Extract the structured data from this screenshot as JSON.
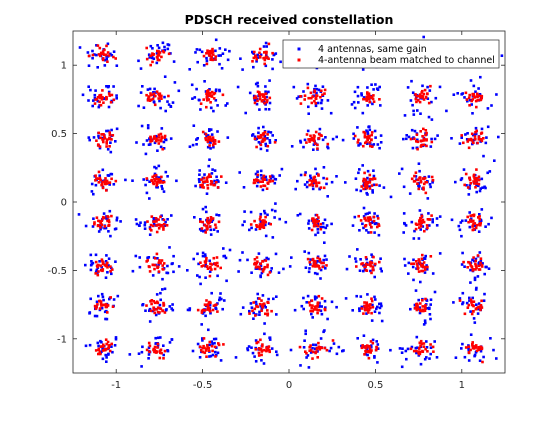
{
  "chart_data": {
    "type": "scatter",
    "title": "PDSCH received constellation",
    "xlabel": "",
    "ylabel": "",
    "xlim": [
      -1.25,
      1.25
    ],
    "ylim": [
      -1.25,
      1.25
    ],
    "x_ticks": [
      -1,
      -0.5,
      0,
      0.5,
      1
    ],
    "y_ticks": [
      -1,
      -0.5,
      0,
      0.5,
      1
    ],
    "x_tick_labels": [
      "-1",
      "-0.5",
      "0",
      "0.5",
      "1"
    ],
    "y_tick_labels": [
      "-1",
      "-0.5",
      "0",
      "0.5",
      "1"
    ],
    "grid": false,
    "legend_position": "top-right",
    "constellation_levels": [
      -1.0738,
      -0.767,
      -0.4602,
      -0.1534,
      0.1534,
      0.4602,
      0.767,
      1.0738
    ],
    "series": [
      {
        "name": "4 antennas, same gain",
        "color": "#0000ff",
        "marker": "point",
        "spread_std": 0.055,
        "points_per_symbol": 24
      },
      {
        "name": "4-antenna beam matched to channel",
        "color": "#ff0000",
        "marker": "point",
        "spread_std": 0.028,
        "points_per_symbol": 24
      }
    ]
  }
}
